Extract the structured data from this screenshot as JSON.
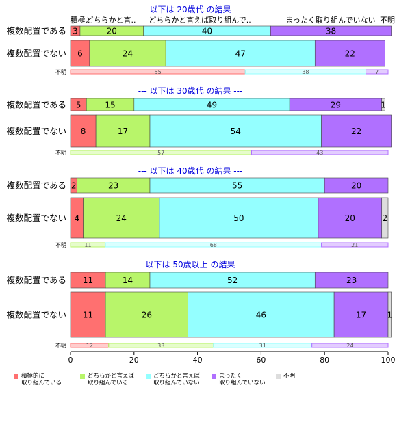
{
  "chart_data": {
    "type": "bar",
    "orientation": "horizontal",
    "stacked": "100%",
    "xlim": [
      0,
      100
    ],
    "x_ticks": [
      "0",
      "20",
      "40",
      "60",
      "80",
      "100"
    ],
    "header_labels": [
      "積極..",
      "どちらかと言..",
      "どちらかと言えば取り組んで..",
      "まったく取り組んでいない",
      "不明"
    ],
    "colors": [
      "#ff7070",
      "#b8f56a",
      "#94ffff",
      "#b070ff",
      "#dddddd"
    ],
    "panels": [
      {
        "title": "--- 以下は 20歳代 の結果 ---",
        "rows": [
          {
            "label": "複数配置である",
            "values": [
              3,
              20,
              40,
              38,
              0
            ]
          },
          {
            "label": "複数配置でない",
            "values": [
              6,
              24,
              47,
              22,
              0
            ]
          }
        ],
        "unknown": {
          "label": "不明",
          "values": [
            55,
            0,
            38,
            7
          ]
        }
      },
      {
        "title": "--- 以下は 30歳代 の結果 ---",
        "rows": [
          {
            "label": "複数配置である",
            "values": [
              5,
              15,
              49,
              29,
              1
            ]
          },
          {
            "label": "複数配置でない",
            "values": [
              8,
              17,
              54,
              22,
              0
            ]
          }
        ],
        "unknown": {
          "label": "不明",
          "values": [
            0,
            57,
            0,
            43
          ]
        }
      },
      {
        "title": "--- 以下は 40歳代 の結果 ---",
        "rows": [
          {
            "label": "複数配置である",
            "values": [
              2,
              23,
              55,
              20,
              0
            ]
          },
          {
            "label": "複数配置でない",
            "values": [
              4,
              24,
              50,
              20,
              2
            ]
          }
        ],
        "unknown": {
          "label": "不明",
          "values": [
            0,
            11,
            68,
            21
          ]
        }
      },
      {
        "title": "--- 以下は 50歳以上 の結果 ---",
        "rows": [
          {
            "label": "複数配置である",
            "values": [
              11,
              14,
              52,
              23,
              0
            ]
          },
          {
            "label": "複数配置でない",
            "values": [
              11,
              26,
              46,
              17,
              1
            ]
          }
        ],
        "unknown": {
          "label": "不明",
          "values": [
            12,
            33,
            31,
            24
          ]
        }
      }
    ],
    "legend": [
      {
        "label": "積極的に\n取り組んでいる",
        "color": "#ff7070"
      },
      {
        "label": "どちらかと言えば\n取り組んでいる",
        "color": "#b8f56a"
      },
      {
        "label": "どちらかと言えば\n取り組んでいない",
        "color": "#94ffff"
      },
      {
        "label": "まったく\n取り組んでいない",
        "color": "#b070ff"
      },
      {
        "label": "不明",
        "color": "#dddddd"
      }
    ]
  }
}
